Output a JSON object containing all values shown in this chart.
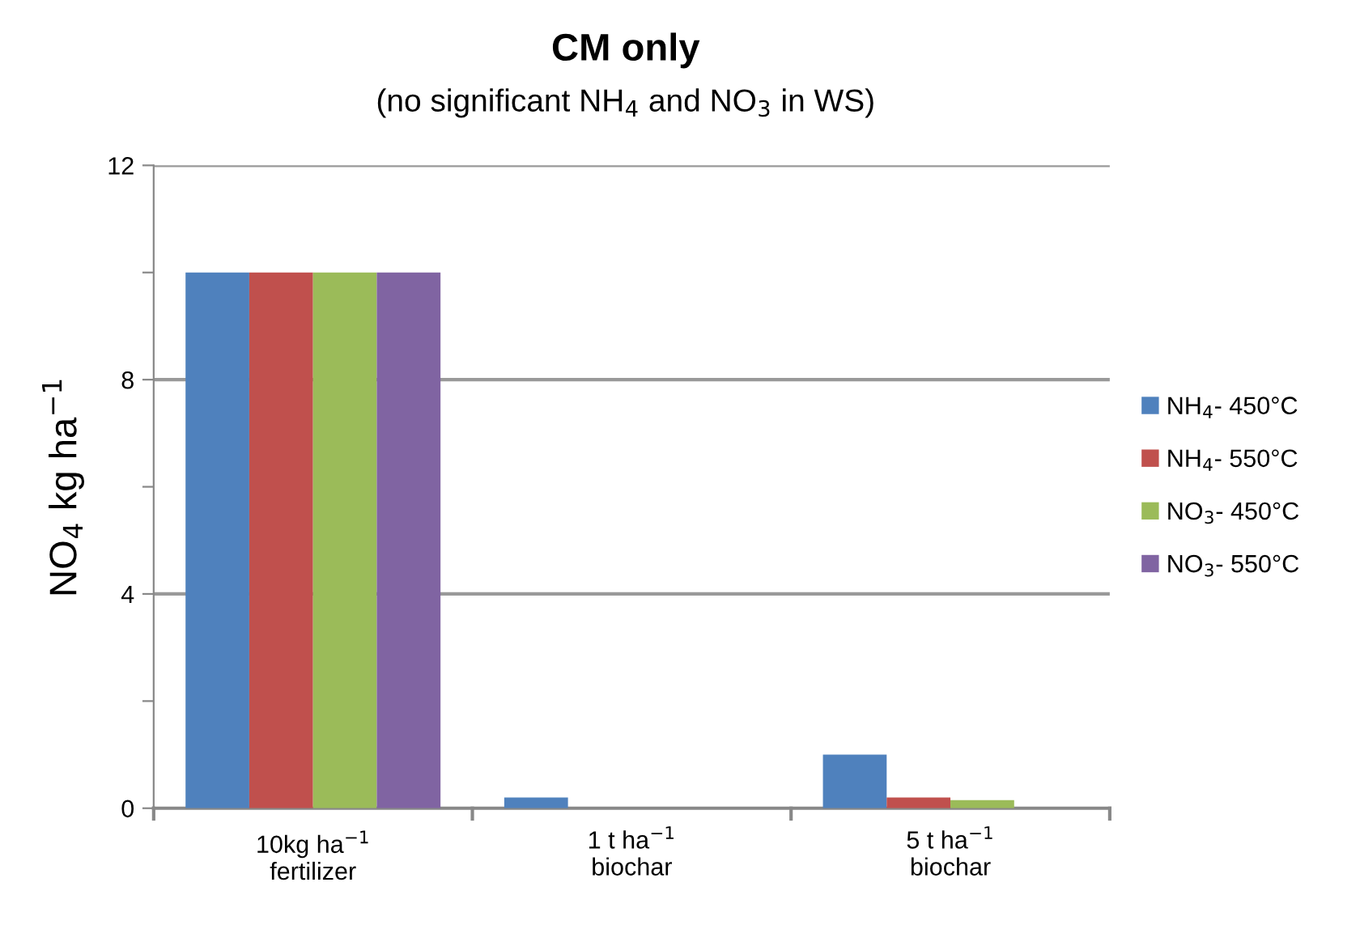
{
  "chart_data": {
    "type": "bar",
    "title": "CM only",
    "subtitle": "(no significant NH$_{4}$ and NO$_{3}$ in WS)",
    "ylabel": "NO$_{4}$ kg ha$^{−1}$",
    "categories": [
      "10kg ha$^{−1}$\nfertilizer",
      "1 t ha$^{−1}$\nbiochar",
      "5 t ha$^{−1}$\nbiochar"
    ],
    "series": [
      {
        "name": "NH$_{4}$- 450°C",
        "color": "#4f81bd",
        "values": [
          10,
          0.2,
          1.0
        ]
      },
      {
        "name": "NH$_{4}$- 550°C",
        "color": "#c0504d",
        "values": [
          10,
          0,
          0.2
        ]
      },
      {
        "name": "NO$_{3}$- 450°C",
        "color": "#9bbb59",
        "values": [
          10,
          0,
          0.15
        ]
      },
      {
        "name": "NO$_{3}$- 550°C",
        "color": "#8064a2",
        "values": [
          10,
          0,
          0
        ]
      }
    ],
    "ylim": [
      0,
      12
    ],
    "yticks": [
      0,
      {
        "value": 2,
        "label": null
      },
      4,
      {
        "value": 6,
        "label": null
      },
      8,
      {
        "value": 10,
        "label": null
      },
      12
    ],
    "grid": "y",
    "legend": "right"
  }
}
